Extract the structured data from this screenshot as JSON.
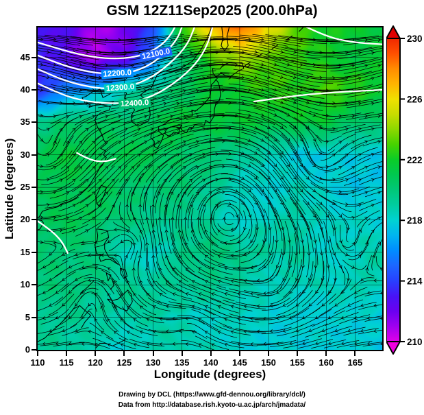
{
  "title": "GSM 12Z11Sep2025 (200.0hPa)",
  "axes": {
    "xlabel": "Longitude (degrees)",
    "ylabel": "Latitude (degrees)"
  },
  "credits": {
    "line1": "Drawing by DCL (https://www.gfd-dennou.org/library/dcl/)",
    "line2": "Data from http://database.rish.kyoto-u.ac.jp/arch/jmadata/"
  },
  "chart_data": {
    "type": "heatmap",
    "overlays": [
      "streamlines",
      "height_contours",
      "coastlines"
    ],
    "x_range": [
      110,
      169.7
    ],
    "y_range": [
      0,
      49.6
    ],
    "x_ticks": [
      110,
      115,
      120,
      125,
      130,
      135,
      140,
      145,
      150,
      155,
      160,
      165
    ],
    "y_ticks": [
      0,
      5,
      10,
      15,
      20,
      25,
      30,
      35,
      40,
      45
    ],
    "grid": true,
    "colorbar": {
      "ticks": [
        210,
        214,
        218,
        222,
        226,
        230
      ],
      "stops": [
        {
          "v": 209,
          "c": "#F000E0"
        },
        {
          "v": 210,
          "c": "#E000E8"
        },
        {
          "v": 211,
          "c": "#A000F0"
        },
        {
          "v": 212,
          "c": "#6B00F0"
        },
        {
          "v": 213,
          "c": "#4813F5"
        },
        {
          "v": 214,
          "c": "#2840FF"
        },
        {
          "v": 215,
          "c": "#1C66FF"
        },
        {
          "v": 216,
          "c": "#008CFF"
        },
        {
          "v": 217,
          "c": "#00B4F0"
        },
        {
          "v": 218,
          "c": "#00D2D2"
        },
        {
          "v": 219,
          "c": "#00CDA0"
        },
        {
          "v": 220,
          "c": "#00C878"
        },
        {
          "v": 221,
          "c": "#00C850"
        },
        {
          "v": 222,
          "c": "#0ACC28"
        },
        {
          "v": 223,
          "c": "#46D200"
        },
        {
          "v": 224,
          "c": "#8CD800"
        },
        {
          "v": 225,
          "c": "#C8DC00"
        },
        {
          "v": 226,
          "c": "#F0E000"
        },
        {
          "v": 227,
          "c": "#FFB400"
        },
        {
          "v": 228,
          "c": "#FF8C00"
        },
        {
          "v": 229,
          "c": "#FF5000"
        },
        {
          "v": 230,
          "c": "#F02800"
        },
        {
          "v": 231,
          "c": "#E00000"
        }
      ]
    },
    "temperature_grid": {
      "lons": [
        110,
        115,
        120,
        125,
        130,
        135,
        140,
        145,
        150,
        155,
        160,
        165,
        170
      ],
      "lats": [
        0,
        5,
        10,
        15,
        20,
        25,
        30,
        35,
        40,
        45,
        50
      ],
      "values": [
        [
          219.5,
          219,
          218.5,
          218,
          218.5,
          219,
          218.5,
          218,
          218,
          217.8,
          218,
          217.8,
          217.5
        ],
        [
          219.5,
          219.5,
          219,
          219,
          219,
          218.5,
          218,
          218.5,
          218,
          217.8,
          218,
          218,
          217.8
        ],
        [
          220,
          220,
          219.5,
          219.5,
          219,
          219.5,
          219.5,
          219,
          218.5,
          218.5,
          218.5,
          218.5,
          218.5
        ],
        [
          220.5,
          220,
          220,
          218.5,
          218,
          219.5,
          220,
          219.5,
          219,
          219,
          218.2,
          218.5,
          219
        ],
        [
          220.5,
          221,
          220.5,
          220,
          219.5,
          219.5,
          219,
          218.2,
          218.5,
          219,
          218.3,
          218.2,
          218
        ],
        [
          221,
          221,
          221,
          220.5,
          220,
          220,
          219.5,
          218.2,
          218,
          218.5,
          218,
          217.6,
          217.5
        ],
        [
          221,
          221.5,
          221,
          221,
          221,
          220.5,
          220,
          219.5,
          218.5,
          217.6,
          217.8,
          217.8,
          217.6
        ],
        [
          219.5,
          220.5,
          220.5,
          220.5,
          221,
          221.5,
          221.5,
          221.5,
          221.5,
          221.5,
          221.5,
          220.5,
          220
        ],
        [
          213.5,
          215.5,
          217,
          218.5,
          219.5,
          220.5,
          221.5,
          222,
          222.5,
          222.5,
          223,
          222.5,
          222
        ],
        [
          213.5,
          212.5,
          210.5,
          212,
          215.5,
          220,
          223,
          224.5,
          223.5,
          222.5,
          222,
          221.5,
          221.5
        ],
        [
          213,
          212.5,
          211,
          211.5,
          214,
          223,
          227,
          229.5,
          226,
          223.5,
          222,
          222,
          221.5
        ]
      ]
    },
    "height_contours": [
      {
        "label": "12100.0",
        "label_lon": 130.5,
        "label_lat": 45.5,
        "label_angle": -12,
        "path": [
          [
            110,
            47.3
          ],
          [
            114,
            46.2
          ],
          [
            118,
            45.3
          ],
          [
            122,
            44.8
          ],
          [
            126,
            44.9
          ],
          [
            129,
            45.6
          ],
          [
            131.5,
            46.9
          ],
          [
            133,
            48.4
          ],
          [
            133.8,
            49.7
          ]
        ]
      },
      {
        "label": "12200.0",
        "label_lon": 123.8,
        "label_lat": 42.5,
        "label_angle": -4,
        "path": [
          [
            110,
            45.3
          ],
          [
            114,
            43.9
          ],
          [
            118,
            42.9
          ],
          [
            122,
            42.4
          ],
          [
            126,
            42.6
          ],
          [
            129.5,
            43.8
          ],
          [
            132.5,
            46.0
          ],
          [
            134.3,
            48.0
          ],
          [
            135.0,
            49.7
          ]
        ]
      },
      {
        "label": "12300.0",
        "label_lon": 124.3,
        "label_lat": 40.3,
        "label_angle": -4,
        "path": [
          [
            110,
            43.2
          ],
          [
            114,
            41.6
          ],
          [
            118,
            40.6
          ],
          [
            122,
            40.1
          ],
          [
            126,
            40.5
          ],
          [
            130,
            42.0
          ],
          [
            133.5,
            44.5
          ],
          [
            136,
            47.0
          ],
          [
            137.2,
            49.7
          ]
        ]
      },
      {
        "label": "12400.0",
        "label_lon": 126.8,
        "label_lat": 37.9,
        "label_angle": -3,
        "path": [
          [
            110,
            41.0
          ],
          [
            114,
            39.3
          ],
          [
            118,
            38.3
          ],
          [
            122,
            37.9
          ],
          [
            126,
            38.0
          ],
          [
            130,
            39.0
          ],
          [
            134,
            41.2
          ],
          [
            137.5,
            44.0
          ],
          [
            139.5,
            47.0
          ],
          [
            140.3,
            49.7
          ]
        ]
      },
      {
        "label": "",
        "path": [
          [
            147.5,
            38.2
          ],
          [
            153,
            38.9
          ],
          [
            158,
            39.4
          ],
          [
            163,
            39.7
          ],
          [
            169.7,
            40.0
          ]
        ]
      },
      {
        "label": "",
        "path": [
          [
            156.5,
            49.7
          ],
          [
            160,
            48.2
          ],
          [
            164.5,
            47.3
          ],
          [
            169.7,
            47.0
          ]
        ]
      },
      {
        "label": "",
        "path": [
          [
            110,
            19.8
          ],
          [
            112.3,
            18.4
          ],
          [
            114.2,
            16.7
          ],
          [
            115.2,
            14.9
          ]
        ]
      },
      {
        "label": "",
        "path": [
          [
            116.8,
            30.3
          ],
          [
            119,
            29.2
          ],
          [
            121.5,
            28.9
          ],
          [
            123.5,
            29.4
          ]
        ]
      }
    ],
    "wind": {
      "zonal_profile": [
        [
          0,
          -5
        ],
        [
          8,
          -4
        ],
        [
          14,
          -1
        ],
        [
          20,
          3
        ],
        [
          26,
          4
        ],
        [
          32,
          6
        ],
        [
          36,
          10
        ],
        [
          40,
          22
        ],
        [
          44,
          34
        ],
        [
          50,
          38
        ]
      ],
      "jet_wave": {
        "trough_lon": 124,
        "wavelength": 36,
        "amp": 8,
        "center_lat": 44,
        "width": 5.5
      },
      "vortices": [
        {
          "lon": 143.0,
          "lat": 21.5,
          "rotation": "cw",
          "strength": 8,
          "radius": 6.5
        },
        {
          "lon": 158.5,
          "lat": 28.8,
          "rotation": "ccw",
          "strength": 6,
          "radius": 3.5
        },
        {
          "lon": 127.0,
          "lat": 16.5,
          "rotation": "ccw",
          "strength": 5,
          "radius": 2.8
        },
        {
          "lon": 111.5,
          "lat": 30.2,
          "rotation": "ccw",
          "strength": 6,
          "radius": 3.5
        },
        {
          "lon": 119.5,
          "lat": 8.5,
          "rotation": "ccw",
          "strength": 4,
          "radius": 3.0
        },
        {
          "lon": 163.0,
          "lat": 16.5,
          "rotation": "ccw",
          "strength": 4,
          "radius": 2.8
        },
        {
          "lon": 151.0,
          "lat": 9.0,
          "rotation": "cw",
          "strength": 3,
          "radius": 3.0
        },
        {
          "lon": 137.0,
          "lat": 4.5,
          "rotation": "ccw",
          "strength": 3,
          "radius": 2.5
        }
      ]
    }
  }
}
